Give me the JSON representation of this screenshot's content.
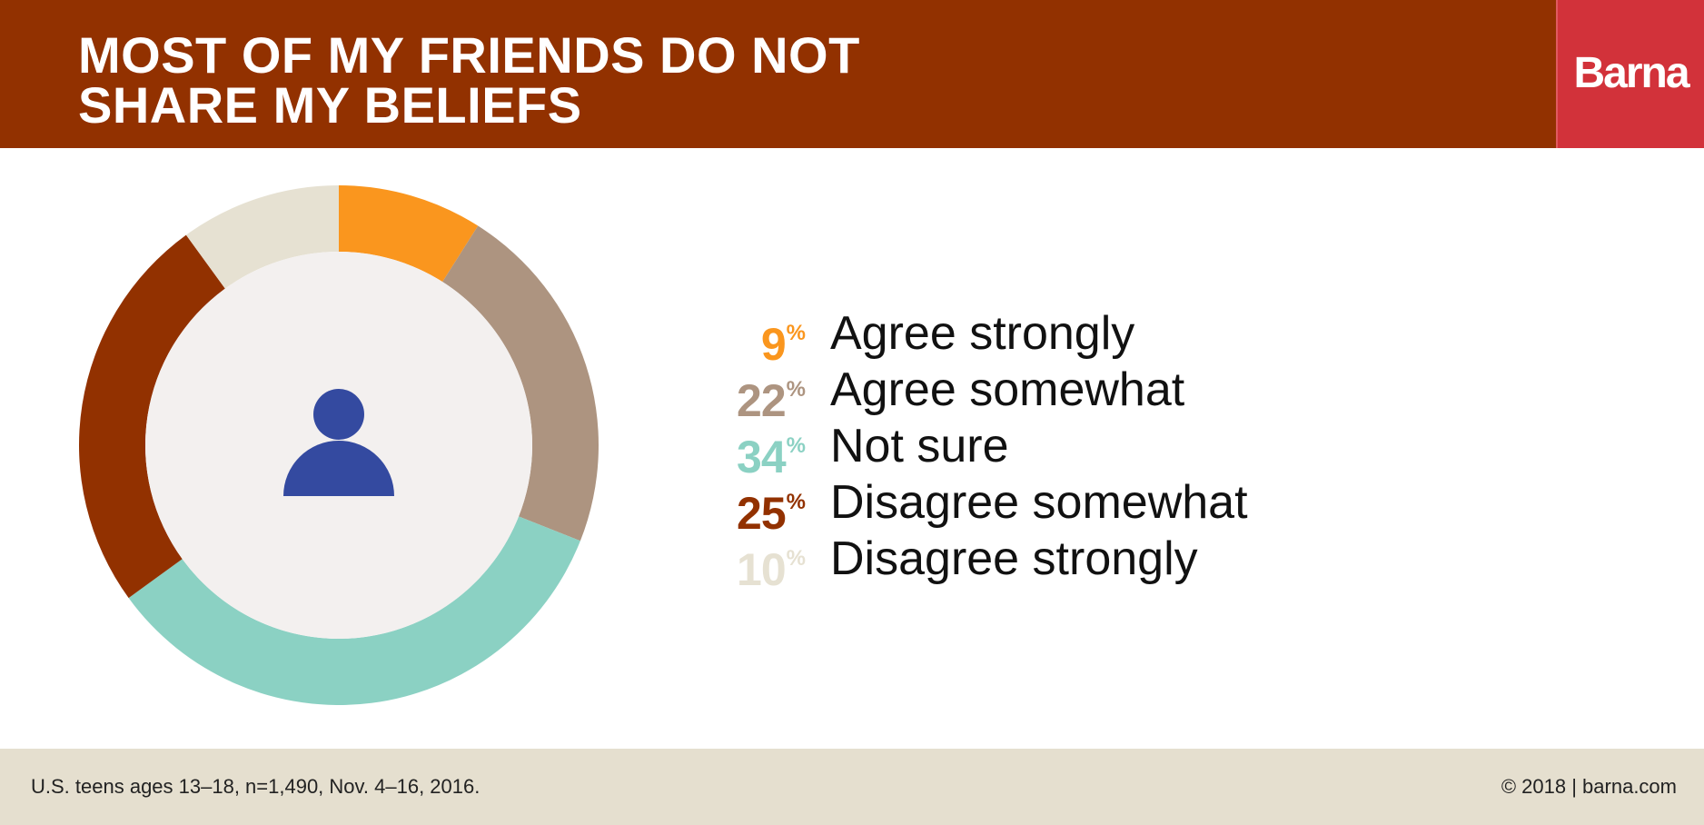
{
  "header": {
    "title_line1": "MOST OF MY FRIENDS DO NOT",
    "title_line2": "SHARE MY BELIEFS",
    "brand": "Barna"
  },
  "colors": {
    "header_bg": "#923100",
    "brand_bg": "#d2323a",
    "donut_center": "#f3f0ef",
    "person_icon": "#344aa0",
    "footer_bg": "#e5dfcf"
  },
  "center_icon": "person-icon",
  "chart_data": {
    "type": "pie",
    "subtype": "donut",
    "categories": [
      "Agree strongly",
      "Agree somewhat",
      "Not sure",
      "Disagree somewhat",
      "Disagree strongly"
    ],
    "values": [
      9,
      22,
      34,
      25,
      10
    ],
    "unit": "%",
    "colors": [
      "#fa961e",
      "#ad9480",
      "#8bd1c3",
      "#923100",
      "#e6e1d2"
    ],
    "title": "MOST OF MY FRIENDS DO NOT SHARE MY BELIEFS",
    "legend": "right"
  },
  "footer": {
    "source": "U.S. teens ages 13–18, n=1,490, Nov. 4–16, 2016.",
    "copyright": "© 2018 | barna.com"
  }
}
